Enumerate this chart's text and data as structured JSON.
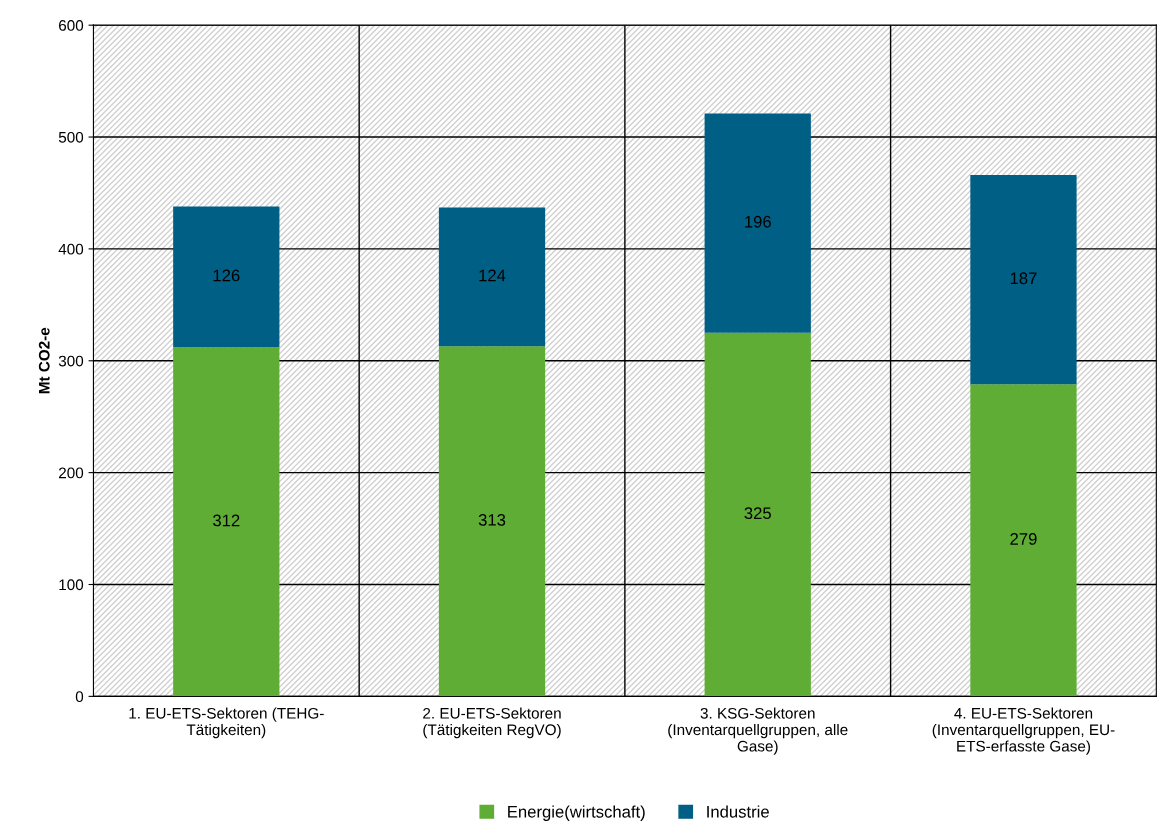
{
  "chart_data": {
    "type": "bar",
    "stacked": true,
    "ylabel": "Mt CO2-e",
    "categories": [
      "1. EU-ETS-Sektoren (TEHG-\nTätigkeiten)",
      "2. EU-ETS-Sektoren\n(Tätigkeiten RegVO)",
      "3. KSG-Sektoren\n(Inventarquellgruppen, alle\nGase)",
      "4. EU-ETS-Sektoren\n(Inventarquellgruppen, EU-\nETS-erfasste Gase)"
    ],
    "series": [
      {
        "name": "Energie(wirtschaft)",
        "color": "#5fad35",
        "values": [
          312,
          313,
          325,
          279
        ]
      },
      {
        "name": "Industrie",
        "color": "#005f85",
        "values": [
          126,
          124,
          196,
          187
        ]
      }
    ],
    "ylim": [
      0,
      600
    ],
    "yticks": [
      0,
      100,
      200,
      300,
      400,
      500,
      600
    ],
    "grid": true,
    "data_labels": true,
    "legend": "bottom"
  }
}
